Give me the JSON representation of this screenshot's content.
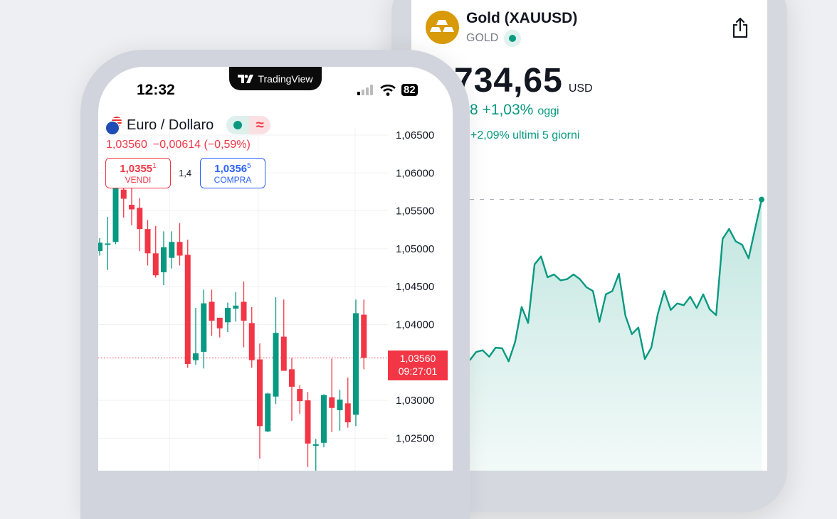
{
  "colors": {
    "up": "#089981",
    "down": "#f23645",
    "buy": "#2962ff",
    "gold": "#d99a09",
    "bezel": "#d1d4dc"
  },
  "brand": {
    "logo_text": "TradingView"
  },
  "status_bar": {
    "time": "12:32",
    "battery": "82",
    "icons": [
      "signal-icon",
      "wifi-icon",
      "battery-icon"
    ]
  },
  "left_app": {
    "symbol_name": "Euro / Dollaro",
    "market_status_icon": "market-open-dot",
    "delayed_icon": "approx-icon",
    "delayed_glyph": "≈",
    "last_price": "1,03560",
    "change": "−0,00614 (−0,59%)",
    "sell": {
      "price": "1,0355",
      "price_sup": "1",
      "label": "VENDI"
    },
    "spread": "1,4",
    "buy": {
      "price": "1,0356",
      "price_sup": "5",
      "label": "COMPRA"
    },
    "price_label": {
      "price": "1,03560",
      "countdown": "09:27:01"
    }
  },
  "right_app": {
    "title": "Gold (XAUUSD)",
    "subtitle": "GOLD",
    "price": "734,65",
    "currency": "USD",
    "change_today": "8 +1,03%",
    "change_today_suffix": "oggi",
    "change_5d": "+2,09% ultimi 5 giorni",
    "share_icon": "share-icon"
  },
  "chart_data": [
    {
      "type": "candlestick",
      "title": "",
      "y_ticks": [
        "1,06500",
        "1,06000",
        "1,05500",
        "1,05000",
        "1,04500",
        "1,04000",
        "1,03000",
        "1,02500"
      ],
      "y_tick_values": [
        1.065,
        1.06,
        1.055,
        1.05,
        1.045,
        1.04,
        1.03,
        1.025
      ],
      "grid": true,
      "last_price_line": 1.0356,
      "ohlc": [
        [
          1.0497,
          1.0514,
          1.0491,
          1.0508
        ],
        [
          1.0506,
          1.0542,
          1.0472,
          1.0507
        ],
        [
          1.0509,
          1.0603,
          1.0506,
          1.058
        ],
        [
          1.0578,
          1.0598,
          1.0541,
          1.0566
        ],
        [
          1.0558,
          1.058,
          1.0531,
          1.0552
        ],
        [
          1.0554,
          1.0567,
          1.0497,
          1.0526
        ],
        [
          1.0526,
          1.0538,
          1.0478,
          1.0494
        ],
        [
          1.0494,
          1.053,
          1.0462,
          1.0465
        ],
        [
          1.0469,
          1.0523,
          1.0452,
          1.0502
        ],
        [
          1.0488,
          1.0523,
          1.0474,
          1.0509
        ],
        [
          1.0509,
          1.0534,
          1.0478,
          1.0491
        ],
        [
          1.0492,
          1.0512,
          1.0343,
          1.0348
        ],
        [
          1.0353,
          1.0422,
          1.0347,
          1.0362
        ],
        [
          1.0364,
          1.0446,
          1.0342,
          1.0428
        ],
        [
          1.043,
          1.0446,
          1.0385,
          1.0405
        ],
        [
          1.0409,
          1.0409,
          1.0383,
          1.0395
        ],
        [
          1.0403,
          1.0429,
          1.039,
          1.0422
        ],
        [
          1.0421,
          1.0443,
          1.0404,
          1.0425
        ],
        [
          1.043,
          1.0457,
          1.037,
          1.0405
        ],
        [
          1.0402,
          1.0423,
          1.0343,
          1.0353
        ],
        [
          1.0354,
          1.0375,
          1.0223,
          1.0266
        ],
        [
          1.0259,
          1.031,
          1.0258,
          1.0309
        ],
        [
          1.0305,
          1.0436,
          1.0295,
          1.0389
        ],
        [
          1.0384,
          1.0433,
          1.0339,
          1.0339
        ],
        [
          1.0341,
          1.0356,
          1.0273,
          1.0318
        ],
        [
          1.0315,
          1.032,
          1.0282,
          1.0299
        ],
        [
          1.03,
          1.0311,
          1.0212,
          1.0243
        ],
        [
          1.024,
          1.0249,
          1.0207,
          1.0242
        ],
        [
          1.0244,
          1.0308,
          1.0238,
          1.0307
        ],
        [
          1.0304,
          1.0355,
          1.0258,
          1.029
        ],
        [
          1.0287,
          1.0314,
          1.026,
          1.0301
        ],
        [
          1.0296,
          1.033,
          1.0264,
          1.0271
        ],
        [
          1.0281,
          1.0433,
          1.0266,
          1.0415
        ],
        [
          1.0413,
          1.0433,
          1.0341,
          1.0356
        ]
      ]
    },
    {
      "type": "area",
      "title": "",
      "grid": false,
      "values": [
        7.0,
        10.5,
        11.2,
        8.5,
        12.3,
        12.0,
        6.5,
        14.8,
        29.5,
        22.7,
        47.5,
        50.8,
        42.0,
        43.2,
        40.7,
        41.2,
        43.2,
        41.2,
        37.8,
        36.2,
        23.2,
        34.8,
        36.2,
        43.5,
        25.8,
        18.0,
        20.8,
        7.5,
        12.3,
        26.5,
        36.2,
        28.2,
        31.0,
        30.2,
        33.8,
        29.0,
        34.8,
        28.5,
        26.0,
        58.2,
        62.4,
        57.2,
        55.7,
        50.0,
        62.5,
        74.8
      ]
    }
  ]
}
